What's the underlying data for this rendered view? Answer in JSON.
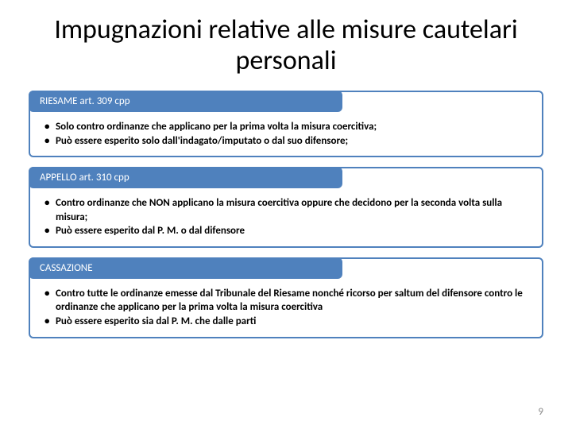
{
  "title": "Impugnazioni relative alle misure cautelari personali",
  "sections": [
    {
      "header": "RIESAME  art. 309 cpp",
      "header_bg": "#4f81bd",
      "border_color": "#4f81bd",
      "bullets": [
        "Solo contro ordinanze che applicano per la prima volta  la misura coercitiva;",
        "Può essere esperito solo dall'indagato/imputato o dal suo difensore;"
      ]
    },
    {
      "header": "APPELLO art. 310 cpp",
      "header_bg": "#4f81bd",
      "border_color": "#4f81bd",
      "bullets": [
        "Contro ordinanze che NON applicano la misura coercitiva oppure che decidono per la seconda volta sulla misura;",
        "Può essere esperito dal P. M. o dal difensore"
      ]
    },
    {
      "header": "CASSAZIONE",
      "header_bg": "#4f81bd",
      "border_color": "#4f81bd",
      "bullets": [
        "Contro tutte le ordinanze emesse dal Tribunale del Riesame nonché ricorso per saltum del difensore contro le ordinanze che applicano per la prima volta la misura coercitiva",
        "Può essere esperito sia dal P. M. che dalle parti"
      ]
    }
  ],
  "page_number": "9"
}
